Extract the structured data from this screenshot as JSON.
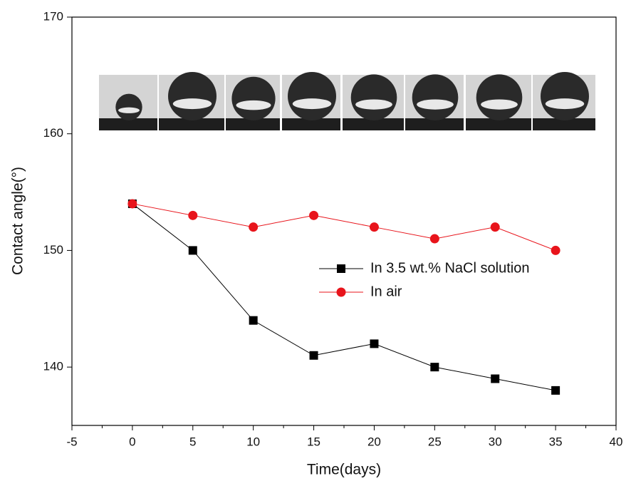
{
  "chart_data": {
    "type": "line",
    "x_label": "Time(days)",
    "y_label": "Contact angle(°)",
    "x": [
      0,
      5,
      10,
      15,
      20,
      25,
      30,
      35
    ],
    "series": [
      {
        "name": "In 3.5 wt.% NaCl solution",
        "color": "#000000",
        "marker": "square",
        "values": [
          154,
          150,
          144,
          141,
          142,
          140,
          139,
          138
        ]
      },
      {
        "name": "In air",
        "color": "#e8141b",
        "marker": "circle",
        "values": [
          154,
          153,
          152,
          153,
          152,
          151,
          152,
          150
        ]
      }
    ],
    "xlim": [
      -5,
      40
    ],
    "xticks": [
      -5,
      0,
      5,
      10,
      15,
      20,
      25,
      30,
      35,
      40
    ],
    "ylim": [
      135,
      170
    ],
    "yticks": [
      140,
      150,
      160,
      170
    ],
    "grid": false,
    "legend_position": "center"
  }
}
